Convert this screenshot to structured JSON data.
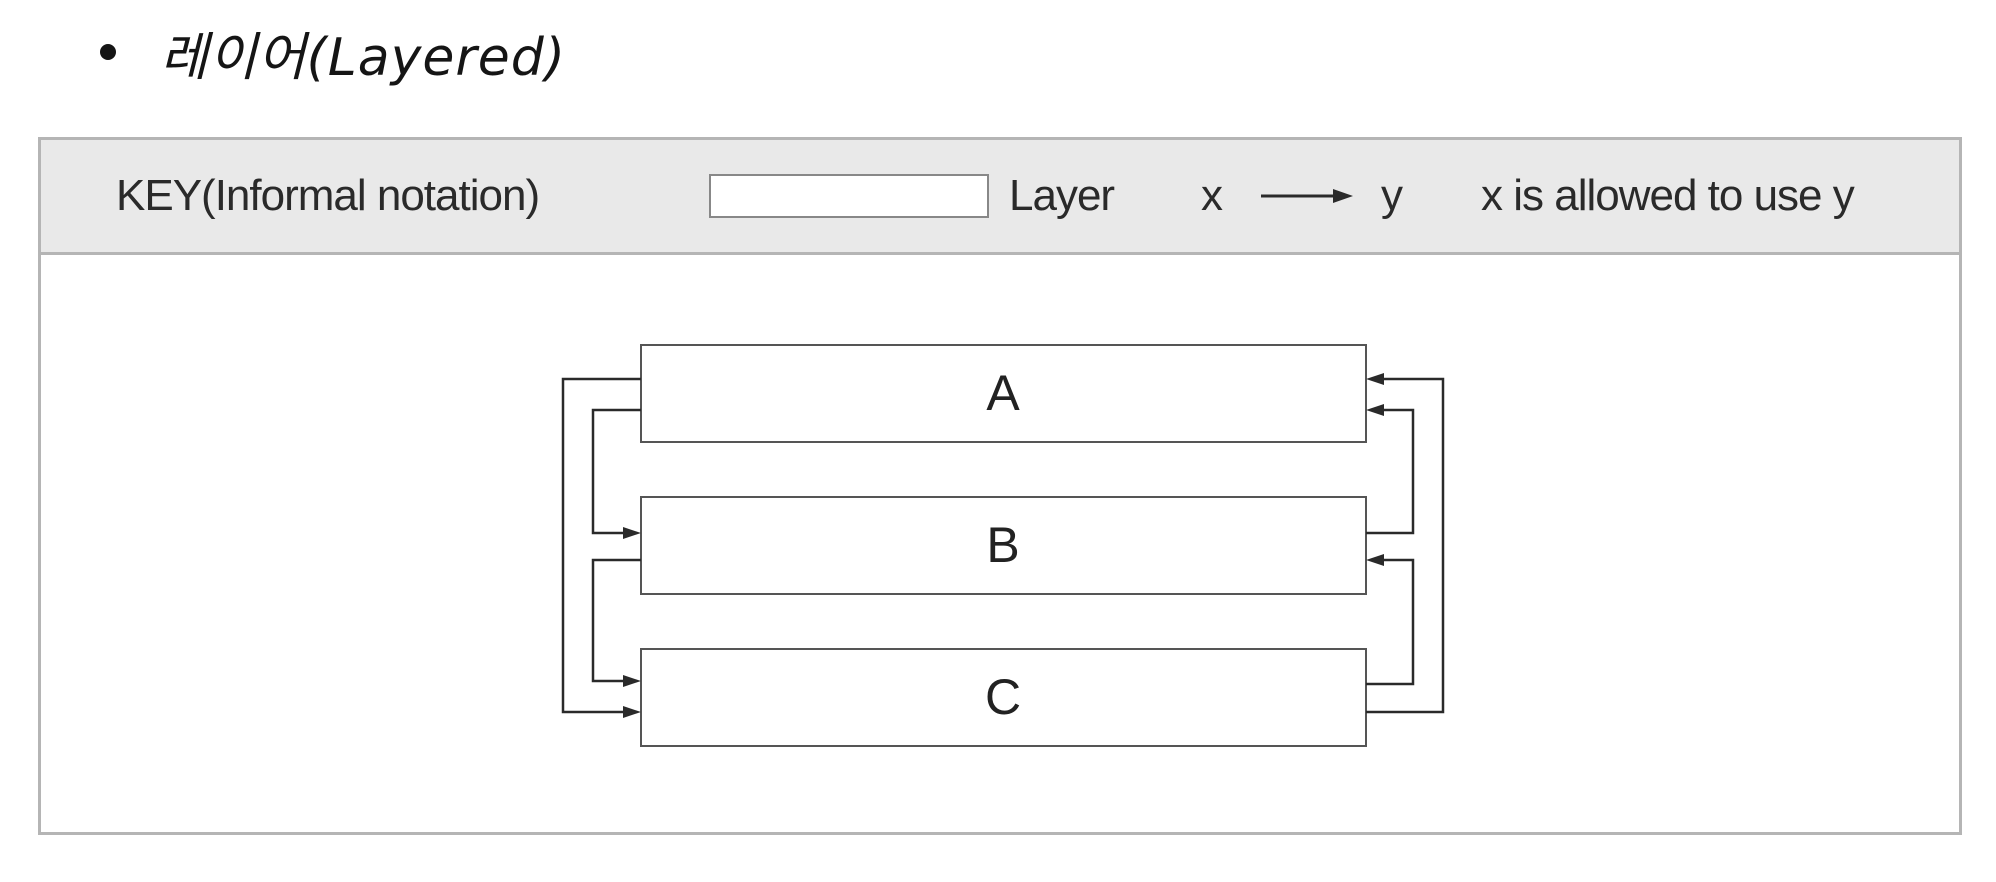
{
  "title": {
    "text": "레이어(Layered)"
  },
  "key": {
    "title": "KEY(Informal notation)",
    "layer_label": "Layer",
    "x_label": "x",
    "y_label": "y",
    "relation_desc": "x is allowed to use y"
  },
  "layers": [
    {
      "label": "A"
    },
    {
      "label": "B"
    },
    {
      "label": "C"
    }
  ]
}
